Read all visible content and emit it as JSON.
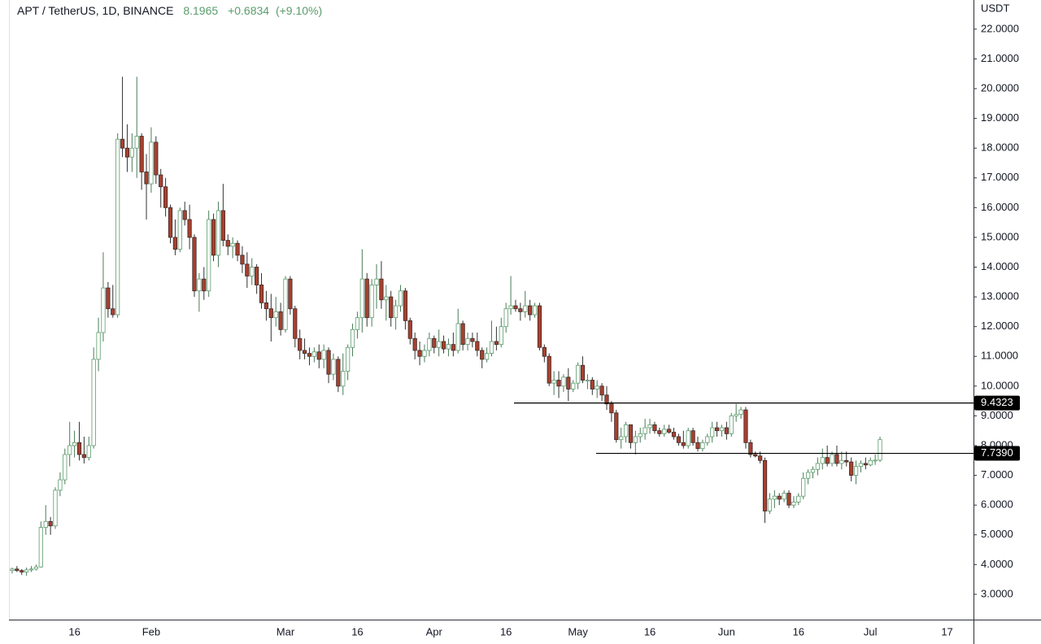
{
  "chart_data": {
    "type": "candlestick",
    "title": "APT / TetherUS, 1D, BINANCE",
    "last": "8.1965",
    "change": "+0.6834",
    "change_pct": "(+9.10%)",
    "y_axis_label": "USDT",
    "up_color": "#5b9c6c",
    "down_color": "#a8402f",
    "ylim": [
      2.15,
      22.98
    ],
    "yticks": [
      {
        "value": 3,
        "label": "3.0000"
      },
      {
        "value": 4,
        "label": "4.0000"
      },
      {
        "value": 5,
        "label": "5.0000"
      },
      {
        "value": 6,
        "label": "6.0000"
      },
      {
        "value": 7,
        "label": "7.0000"
      },
      {
        "value": 8,
        "label": "8.0000"
      },
      {
        "value": 9,
        "label": "9.0000"
      },
      {
        "value": 10,
        "label": "10.0000"
      },
      {
        "value": 11,
        "label": "11.0000"
      },
      {
        "value": 12,
        "label": "12.0000"
      },
      {
        "value": 13,
        "label": "13.0000"
      },
      {
        "value": 14,
        "label": "14.0000"
      },
      {
        "value": 15,
        "label": "15.0000"
      },
      {
        "value": 16,
        "label": "16.0000"
      },
      {
        "value": 17,
        "label": "17.0000"
      },
      {
        "value": 18,
        "label": "18.0000"
      },
      {
        "value": 19,
        "label": "19.0000"
      },
      {
        "value": 20,
        "label": "20.0000"
      },
      {
        "value": 21,
        "label": "21.0000"
      },
      {
        "value": 22,
        "label": "22.0000"
      }
    ],
    "hlines": [
      {
        "value": 9.4323,
        "label": "9.4323"
      },
      {
        "value": 7.739,
        "label": "7.7390"
      }
    ],
    "categories": [
      null,
      null,
      null,
      null,
      null,
      null,
      null,
      null,
      null,
      null,
      null,
      null,
      null,
      "16",
      null,
      null,
      null,
      null,
      null,
      null,
      null,
      null,
      null,
      null,
      null,
      null,
      null,
      null,
      null,
      "Feb",
      null,
      null,
      null,
      null,
      null,
      null,
      null,
      null,
      null,
      null,
      null,
      null,
      null,
      null,
      null,
      null,
      null,
      null,
      null,
      null,
      null,
      null,
      null,
      null,
      null,
      null,
      null,
      "Mar",
      null,
      null,
      null,
      null,
      null,
      null,
      null,
      null,
      null,
      null,
      null,
      null,
      null,
      null,
      "16",
      null,
      null,
      null,
      null,
      null,
      null,
      null,
      null,
      null,
      null,
      null,
      null,
      null,
      null,
      null,
      "Apr",
      null,
      null,
      null,
      null,
      null,
      null,
      null,
      null,
      null,
      null,
      null,
      null,
      null,
      null,
      "16",
      null,
      null,
      null,
      null,
      null,
      null,
      null,
      null,
      null,
      null,
      null,
      null,
      null,
      null,
      "May",
      null,
      null,
      null,
      null,
      null,
      null,
      null,
      null,
      null,
      null,
      null,
      null,
      null,
      null,
      "16",
      null,
      null,
      null,
      null,
      null,
      null,
      null,
      null,
      null,
      null,
      null,
      null,
      null,
      null,
      null,
      "Jun",
      null,
      null,
      null,
      null,
      null,
      null,
      null,
      null,
      null,
      null,
      null,
      null,
      null,
      null,
      "16",
      null,
      null,
      null,
      null,
      null,
      null,
      null,
      null,
      null,
      null,
      null,
      null,
      null,
      null,
      "Jul",
      null,
      null,
      null,
      null,
      null,
      null,
      null,
      null,
      null,
      null,
      null,
      null,
      null,
      null,
      null,
      "17",
      null,
      null,
      null,
      null,
      null
    ],
    "values": [
      [
        3.8,
        3.9,
        3.7,
        3.85
      ],
      [
        3.85,
        3.95,
        3.75,
        3.8
      ],
      [
        3.8,
        3.85,
        3.65,
        3.75
      ],
      [
        3.75,
        3.9,
        3.62,
        3.82
      ],
      [
        3.82,
        3.95,
        3.75,
        3.85
      ],
      [
        3.85,
        4.0,
        3.8,
        3.92
      ],
      [
        3.92,
        5.45,
        3.9,
        5.25
      ],
      [
        5.25,
        6.0,
        5.0,
        5.45
      ],
      [
        5.45,
        5.6,
        5.0,
        5.3
      ],
      [
        5.3,
        6.6,
        5.2,
        6.5
      ],
      [
        6.5,
        7.1,
        6.3,
        6.85
      ],
      [
        6.85,
        7.9,
        6.7,
        7.7
      ],
      [
        7.7,
        8.8,
        7.3,
        8.0
      ],
      [
        8.0,
        8.5,
        7.6,
        8.1
      ],
      [
        8.1,
        8.8,
        7.5,
        7.7
      ],
      [
        7.7,
        8.3,
        7.4,
        7.6
      ],
      [
        7.6,
        8.3,
        7.5,
        8.0
      ],
      [
        8.0,
        11.3,
        7.9,
        10.9
      ],
      [
        10.9,
        12.3,
        10.5,
        11.8
      ],
      [
        11.8,
        14.5,
        11.5,
        13.3
      ],
      [
        13.3,
        13.5,
        12.3,
        12.6
      ],
      [
        12.6,
        13.4,
        12.3,
        12.4
      ],
      [
        12.4,
        18.5,
        12.3,
        18.3
      ],
      [
        18.3,
        20.4,
        17.7,
        18.0
      ],
      [
        18.0,
        18.8,
        17.2,
        17.7
      ],
      [
        17.7,
        18.5,
        17.2,
        18.0
      ],
      [
        18.0,
        20.4,
        17.0,
        18.4
      ],
      [
        18.4,
        18.5,
        16.6,
        17.2
      ],
      [
        17.2,
        17.8,
        15.6,
        16.8
      ],
      [
        16.8,
        18.7,
        16.5,
        18.2
      ],
      [
        18.2,
        18.4,
        16.8,
        17.1
      ],
      [
        17.1,
        17.3,
        16.0,
        16.7
      ],
      [
        16.7,
        17.0,
        15.7,
        16.0
      ],
      [
        16.0,
        16.1,
        14.8,
        15.0
      ],
      [
        15.0,
        15.6,
        14.4,
        14.6
      ],
      [
        14.6,
        16.0,
        14.5,
        15.9
      ],
      [
        15.9,
        16.2,
        15.4,
        15.6
      ],
      [
        15.6,
        16.1,
        14.6,
        15.0
      ],
      [
        15.0,
        15.1,
        13.0,
        13.2
      ],
      [
        13.2,
        13.8,
        12.5,
        13.6
      ],
      [
        13.6,
        14.0,
        12.9,
        13.2
      ],
      [
        13.2,
        15.9,
        13.0,
        15.6
      ],
      [
        15.6,
        15.8,
        14.2,
        14.4
      ],
      [
        14.4,
        16.2,
        14.0,
        15.9
      ],
      [
        15.9,
        16.8,
        14.7,
        14.9
      ],
      [
        14.9,
        15.1,
        14.4,
        14.7
      ],
      [
        14.7,
        15.0,
        14.3,
        14.8
      ],
      [
        14.8,
        14.9,
        14.2,
        14.4
      ],
      [
        14.4,
        14.7,
        13.8,
        14.1
      ],
      [
        14.1,
        14.5,
        13.3,
        13.7
      ],
      [
        13.7,
        14.3,
        13.4,
        14.0
      ],
      [
        14.0,
        14.1,
        13.1,
        13.4
      ],
      [
        13.4,
        13.8,
        12.6,
        12.8
      ],
      [
        12.8,
        13.2,
        12.2,
        12.6
      ],
      [
        12.6,
        13.1,
        11.5,
        12.3
      ],
      [
        12.3,
        13.0,
        12.0,
        12.5
      ],
      [
        12.5,
        12.8,
        11.7,
        11.9
      ],
      [
        11.9,
        13.7,
        11.8,
        13.6
      ],
      [
        13.6,
        13.7,
        12.4,
        12.6
      ],
      [
        12.6,
        12.7,
        11.3,
        11.6
      ],
      [
        11.6,
        11.9,
        10.9,
        11.2
      ],
      [
        11.2,
        11.6,
        10.9,
        11.1
      ],
      [
        11.1,
        11.3,
        10.7,
        11.0
      ],
      [
        11.0,
        11.3,
        10.8,
        11.15
      ],
      [
        11.15,
        11.4,
        10.6,
        10.9
      ],
      [
        10.9,
        11.4,
        10.6,
        11.2
      ],
      [
        11.2,
        11.3,
        10.1,
        10.4
      ],
      [
        10.4,
        11.1,
        10.2,
        10.9
      ],
      [
        10.9,
        11.0,
        9.8,
        10.0
      ],
      [
        10.0,
        11.1,
        9.7,
        10.5
      ],
      [
        10.5,
        11.4,
        10.2,
        11.3
      ],
      [
        11.3,
        12.1,
        11.0,
        11.9
      ],
      [
        11.9,
        12.5,
        11.6,
        12.3
      ],
      [
        12.3,
        14.6,
        11.8,
        13.6
      ],
      [
        13.6,
        13.8,
        12.0,
        12.3
      ],
      [
        12.3,
        13.6,
        12.0,
        13.4
      ],
      [
        13.4,
        14.1,
        12.6,
        13.6
      ],
      [
        13.6,
        14.2,
        12.6,
        12.9
      ],
      [
        12.9,
        13.4,
        12.2,
        13.0
      ],
      [
        13.0,
        13.2,
        12.0,
        12.3
      ],
      [
        12.3,
        12.9,
        11.9,
        12.7
      ],
      [
        12.7,
        13.4,
        12.5,
        13.2
      ],
      [
        13.2,
        13.3,
        11.9,
        12.2
      ],
      [
        12.2,
        12.3,
        11.4,
        11.6
      ],
      [
        11.6,
        11.8,
        10.9,
        11.2
      ],
      [
        11.2,
        11.5,
        10.7,
        11.0
      ],
      [
        11.0,
        11.4,
        10.8,
        11.2
      ],
      [
        11.2,
        11.8,
        11.0,
        11.6
      ],
      [
        11.6,
        11.7,
        11.1,
        11.3
      ],
      [
        11.3,
        11.9,
        11.0,
        11.5
      ],
      [
        11.5,
        11.7,
        11.1,
        11.25
      ],
      [
        11.25,
        11.6,
        11.0,
        11.4
      ],
      [
        11.4,
        11.8,
        11.0,
        11.2
      ],
      [
        11.2,
        12.6,
        11.1,
        12.1
      ],
      [
        12.1,
        12.2,
        11.2,
        11.4
      ],
      [
        11.4,
        11.8,
        11.2,
        11.6
      ],
      [
        11.6,
        11.8,
        11.3,
        11.5
      ],
      [
        11.5,
        11.8,
        11.0,
        11.2
      ],
      [
        11.2,
        11.3,
        10.6,
        10.9
      ],
      [
        10.9,
        11.3,
        10.8,
        11.1
      ],
      [
        11.1,
        12.2,
        11.0,
        11.5
      ],
      [
        11.5,
        12.0,
        11.2,
        11.4
      ],
      [
        11.4,
        12.3,
        11.3,
        12.0
      ],
      [
        12.0,
        12.8,
        11.8,
        12.6
      ],
      [
        12.6,
        13.7,
        12.4,
        12.7
      ],
      [
        12.7,
        12.9,
        12.5,
        12.6
      ],
      [
        12.6,
        12.8,
        12.2,
        12.5
      ],
      [
        12.5,
        13.2,
        12.3,
        12.7
      ],
      [
        12.7,
        12.9,
        12.2,
        12.4
      ],
      [
        12.4,
        12.8,
        12.3,
        12.7
      ],
      [
        12.7,
        12.8,
        11.2,
        11.3
      ],
      [
        11.3,
        11.4,
        10.8,
        11.0
      ],
      [
        11.0,
        11.1,
        10.0,
        10.1
      ],
      [
        10.1,
        10.5,
        9.7,
        10.2
      ],
      [
        10.2,
        10.5,
        9.6,
        10.0
      ],
      [
        10.0,
        10.4,
        9.8,
        10.3
      ],
      [
        10.3,
        10.6,
        9.5,
        9.9
      ],
      [
        9.9,
        10.2,
        9.8,
        10.1
      ],
      [
        10.1,
        10.8,
        9.9,
        10.7
      ],
      [
        10.7,
        11.0,
        10.1,
        10.2
      ],
      [
        10.2,
        10.4,
        9.9,
        10.2
      ],
      [
        10.2,
        10.3,
        9.7,
        9.9
      ],
      [
        9.9,
        10.2,
        9.6,
        10.0
      ],
      [
        10.0,
        10.1,
        9.5,
        9.7
      ],
      [
        9.7,
        10.0,
        9.2,
        9.4
      ],
      [
        9.4,
        9.5,
        8.8,
        9.1
      ],
      [
        9.1,
        9.2,
        8.1,
        8.2
      ],
      [
        8.2,
        8.6,
        7.9,
        8.3
      ],
      [
        8.3,
        8.8,
        8.1,
        8.7
      ],
      [
        8.7,
        8.7,
        7.9,
        8.1
      ],
      [
        8.1,
        8.5,
        7.7,
        8.3
      ],
      [
        8.3,
        8.6,
        8.1,
        8.4
      ],
      [
        8.4,
        8.9,
        8.2,
        8.6
      ],
      [
        8.6,
        8.9,
        8.4,
        8.7
      ],
      [
        8.7,
        8.8,
        8.4,
        8.5
      ],
      [
        8.5,
        8.6,
        8.3,
        8.4
      ],
      [
        8.4,
        8.7,
        8.3,
        8.55
      ],
      [
        8.55,
        8.7,
        8.4,
        8.45
      ],
      [
        8.45,
        8.6,
        8.2,
        8.3
      ],
      [
        8.3,
        8.4,
        8.0,
        8.1
      ],
      [
        8.1,
        8.5,
        7.9,
        8.0
      ],
      [
        8.0,
        8.6,
        7.9,
        8.5
      ],
      [
        8.5,
        8.6,
        8.0,
        8.1
      ],
      [
        8.1,
        8.3,
        7.8,
        7.9
      ],
      [
        7.9,
        8.2,
        7.8,
        8.1
      ],
      [
        8.1,
        8.4,
        8.0,
        8.3
      ],
      [
        8.3,
        8.8,
        8.1,
        8.6
      ],
      [
        8.6,
        8.8,
        8.3,
        8.5
      ],
      [
        8.5,
        8.7,
        8.3,
        8.6
      ],
      [
        8.6,
        8.8,
        8.2,
        8.4
      ],
      [
        8.4,
        9.1,
        8.3,
        9.0
      ],
      [
        9.0,
        9.4,
        8.8,
        9.05
      ],
      [
        9.05,
        9.3,
        8.9,
        9.2
      ],
      [
        9.2,
        9.3,
        7.9,
        8.1
      ],
      [
        8.1,
        8.2,
        7.6,
        7.7
      ],
      [
        7.7,
        7.8,
        7.6,
        7.65
      ],
      [
        7.65,
        7.8,
        7.4,
        7.5
      ],
      [
        7.5,
        7.6,
        5.4,
        5.8
      ],
      [
        5.8,
        6.4,
        5.7,
        6.2
      ],
      [
        6.2,
        6.5,
        5.9,
        6.3
      ],
      [
        6.3,
        6.4,
        6.0,
        6.2
      ],
      [
        6.2,
        6.5,
        6.1,
        6.4
      ],
      [
        6.4,
        6.5,
        5.9,
        6.0
      ],
      [
        6.0,
        6.3,
        5.9,
        6.1
      ],
      [
        6.1,
        6.4,
        6.0,
        6.3
      ],
      [
        6.3,
        7.1,
        6.2,
        6.9
      ],
      [
        6.9,
        7.2,
        6.7,
        7.1
      ],
      [
        7.1,
        7.3,
        6.9,
        7.2
      ],
      [
        7.2,
        7.6,
        7.0,
        7.4
      ],
      [
        7.4,
        7.9,
        7.2,
        7.6
      ],
      [
        7.6,
        8.0,
        7.3,
        7.4
      ],
      [
        7.4,
        7.8,
        7.3,
        7.7
      ],
      [
        7.7,
        8.0,
        7.3,
        7.4
      ],
      [
        7.4,
        7.8,
        7.2,
        7.5
      ],
      [
        7.5,
        7.8,
        7.3,
        7.45
      ],
      [
        7.45,
        7.6,
        6.8,
        7.0
      ],
      [
        7.0,
        7.5,
        6.7,
        7.3
      ],
      [
        7.3,
        7.5,
        7.1,
        7.4
      ],
      [
        7.4,
        7.6,
        7.2,
        7.35
      ],
      [
        7.35,
        7.6,
        7.3,
        7.5
      ],
      [
        7.5,
        7.7,
        7.35,
        7.51
      ],
      [
        7.51,
        8.3,
        7.45,
        8.2
      ],
      null,
      null,
      null,
      null,
      null,
      null,
      null,
      null,
      null,
      null,
      null,
      null,
      null,
      null,
      null,
      null,
      null,
      null,
      null
    ]
  }
}
